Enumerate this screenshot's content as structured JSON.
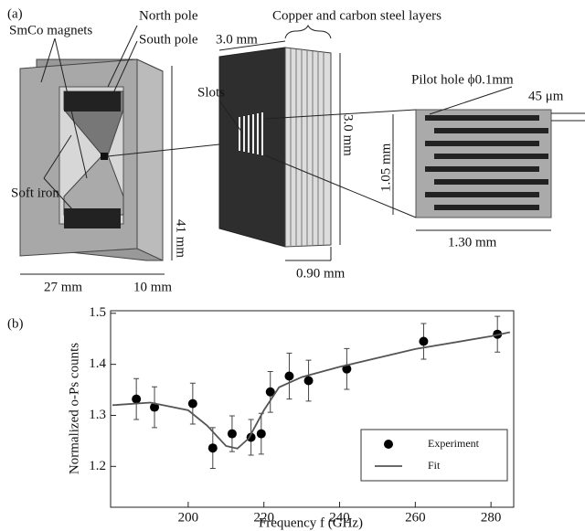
{
  "panel_a": {
    "label": "(a)",
    "north_pole": "North pole",
    "south_pole": "South pole",
    "magnets": "SmCo magnets",
    "soft_iron": "Soft iron",
    "height": "41 mm",
    "width": "27 mm",
    "depth": "10 mm",
    "layers": "Copper and carbon steel layers",
    "target_width": "3.0 mm",
    "slots": "Slots",
    "target_height": "3.0 mm",
    "target_depth": "0.90 mm",
    "pilot_hole": "Pilot hole ϕ0.1mm",
    "slot_gap": "45 μm",
    "detail_height": "1.05 mm",
    "detail_width": "1.30 mm"
  },
  "chart_data": {
    "type": "scatter",
    "panel_label": "(b)",
    "x_label": "Frequency f (GHz)",
    "y_label": "Normalized o-Ps counts",
    "xlim": [
      179.5,
      286
    ],
    "ylim": [
      1.12,
      1.505
    ],
    "xticks": [
      200,
      220,
      240,
      260,
      280
    ],
    "yticks": [
      1.2,
      1.3,
      1.4,
      1.5
    ],
    "series": [
      {
        "name": "Experiment",
        "color": "#000000",
        "marker": "circle",
        "x": [
          186.3,
          191.1,
          201.2,
          206.5,
          211.6,
          216.6,
          219.3,
          221.7,
          226.7,
          231.8,
          241.9,
          262.2,
          281.7
        ],
        "values": [
          1.332,
          1.316,
          1.323,
          1.236,
          1.264,
          1.257,
          1.264,
          1.346,
          1.377,
          1.368,
          1.391,
          1.445,
          1.459
        ],
        "errors": [
          0.04,
          0.04,
          0.04,
          0.04,
          0.035,
          0.035,
          0.04,
          0.04,
          0.045,
          0.04,
          0.04,
          0.035,
          0.035
        ]
      },
      {
        "name": "Fit",
        "color": "#555555",
        "marker": "line",
        "x": [
          180,
          190,
          200,
          205,
          210,
          213,
          216,
          220,
          224,
          230,
          240,
          260,
          280,
          285
        ],
        "values": [
          1.32,
          1.325,
          1.31,
          1.28,
          1.24,
          1.235,
          1.255,
          1.31,
          1.355,
          1.375,
          1.395,
          1.43,
          1.455,
          1.463
        ]
      }
    ]
  }
}
